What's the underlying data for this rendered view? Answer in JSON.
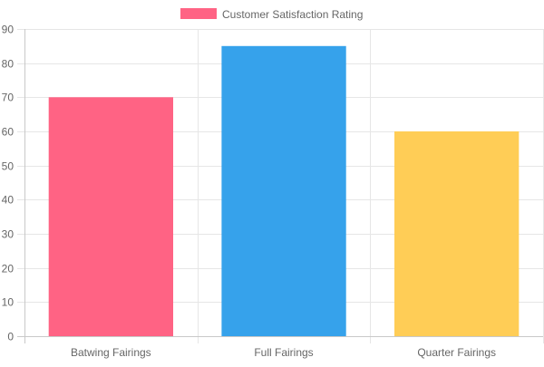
{
  "chart_data": {
    "type": "bar",
    "categories": [
      "Batwing Fairings",
      "Full Fairings",
      "Quarter Fairings"
    ],
    "series": [
      {
        "name": "Customer Satisfaction Rating",
        "values": [
          70,
          85,
          60
        ]
      }
    ],
    "bar_colors": [
      "#ff6384",
      "#36a2eb",
      "#ffcd56"
    ],
    "legend_color": "#ff6384",
    "ylim": [
      0,
      90
    ],
    "yticks": [
      0,
      10,
      20,
      30,
      40,
      50,
      60,
      70,
      80,
      90
    ],
    "grid": true,
    "legend_position": "top-center",
    "title": "",
    "xlabel": "",
    "ylabel": ""
  }
}
